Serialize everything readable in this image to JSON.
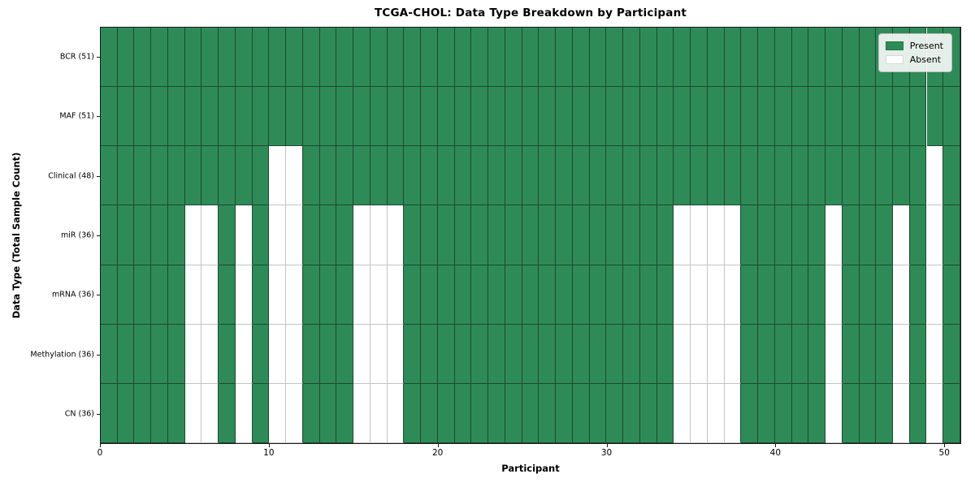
{
  "chart_data": {
    "type": "heatmap",
    "title": "TCGA-CHOL: Data Type Breakdown by Participant",
    "xlabel": "Participant",
    "ylabel": "Data Type (Total Sample Count)",
    "n_participants": 51,
    "xlim": [
      0,
      51
    ],
    "x_tick_values": [
      0,
      10,
      20,
      30,
      40,
      50
    ],
    "x_tick_labels": [
      "0",
      "10",
      "20",
      "30",
      "40",
      "50"
    ],
    "grid": true,
    "colors": {
      "present": "#2e8b57",
      "absent": "#ffffff"
    },
    "legend": {
      "position": "upper right",
      "items": [
        {
          "label": "Present",
          "key": "present"
        },
        {
          "label": "Absent",
          "key": "absent"
        }
      ]
    },
    "rows": [
      {
        "label": "BCR (51)",
        "data_type": "BCR",
        "present_count": 51,
        "absent_participants": []
      },
      {
        "label": "MAF (51)",
        "data_type": "MAF",
        "present_count": 51,
        "absent_participants": []
      },
      {
        "label": "Clinical (48)",
        "data_type": "Clinical",
        "present_count": 48,
        "absent_participants": [
          10,
          11,
          49
        ]
      },
      {
        "label": "miR (36)",
        "data_type": "miR",
        "present_count": 36,
        "absent_participants": [
          5,
          6,
          8,
          10,
          11,
          15,
          16,
          17,
          34,
          35,
          36,
          37,
          43,
          47,
          49
        ]
      },
      {
        "label": "mRNA (36)",
        "data_type": "mRNA",
        "present_count": 36,
        "absent_participants": [
          5,
          6,
          8,
          10,
          11,
          15,
          16,
          17,
          34,
          35,
          36,
          37,
          43,
          47,
          49
        ]
      },
      {
        "label": "Methylation (36)",
        "data_type": "Methylation",
        "present_count": 36,
        "absent_participants": [
          5,
          6,
          8,
          10,
          11,
          15,
          16,
          17,
          34,
          35,
          36,
          37,
          43,
          47,
          49
        ]
      },
      {
        "label": "CN (36)",
        "data_type": "CN",
        "present_count": 36,
        "absent_participants": [
          5,
          6,
          8,
          10,
          11,
          15,
          16,
          17,
          34,
          35,
          36,
          37,
          43,
          47,
          49
        ]
      }
    ]
  }
}
